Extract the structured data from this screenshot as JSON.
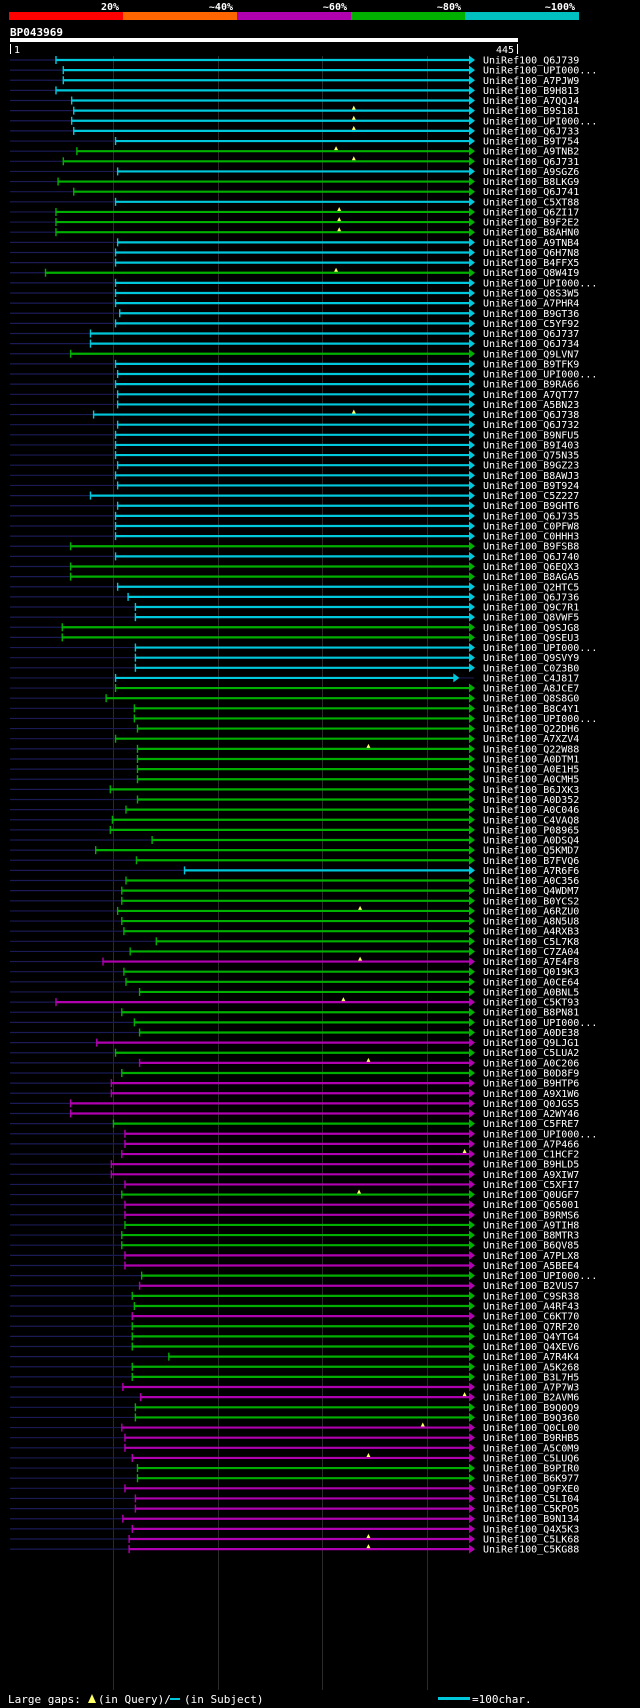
{
  "chart_data": {
    "type": "alignment-overview",
    "query": {
      "id": "BP043969",
      "start": "1",
      "end": "445",
      "length": 445
    },
    "identity_scale": [
      {
        "label": "20%",
        "color": "#ff0000"
      },
      {
        "label": "~40%",
        "color": "#ff6600"
      },
      {
        "label": "~60%",
        "color": "#b000b0"
      },
      {
        "label": "~80%",
        "color": "#00b000"
      },
      {
        "label": "~100%",
        "color": "#00c0c0"
      }
    ],
    "tier_colors": {
      "c": "#00c8dc",
      "g": "#00b000",
      "m": "#b000b0",
      "o": "#ff6600",
      "r": "#ff0000"
    },
    "hits": [
      {
        "name": "UniRef100_Q6J739",
        "start": 45,
        "end": 445,
        "tier": "c"
      },
      {
        "name": "UniRef100_UPI000...",
        "start": 52,
        "end": 445,
        "tier": "c"
      },
      {
        "name": "UniRef100_A7PJW9",
        "start": 52,
        "end": 445,
        "tier": "c"
      },
      {
        "name": "UniRef100_B9H813",
        "start": 45,
        "end": 445,
        "tier": "c"
      },
      {
        "name": "UniRef100_A7QQJ4",
        "start": 60,
        "end": 445,
        "tier": "c"
      },
      {
        "name": "UniRef100_B9S181",
        "start": 62,
        "end": 445,
        "tier": "c",
        "gap": 330
      },
      {
        "name": "UniRef100_UPI000...",
        "start": 60,
        "end": 445,
        "tier": "c",
        "gap": 330
      },
      {
        "name": "UniRef100_Q6J733",
        "start": 62,
        "end": 445,
        "tier": "c",
        "gap": 330
      },
      {
        "name": "UniRef100_B9T754",
        "start": 102,
        "end": 445,
        "tier": "c"
      },
      {
        "name": "UniRef100_A9TNB2",
        "start": 65,
        "end": 445,
        "tier": "g",
        "gap": 313
      },
      {
        "name": "UniRef100_Q6J731",
        "start": 52,
        "end": 445,
        "tier": "g",
        "gap": 330
      },
      {
        "name": "UniRef100_A9SGZ6",
        "start": 104,
        "end": 445,
        "tier": "c"
      },
      {
        "name": "UniRef100_B8LKG9",
        "start": 47,
        "end": 445,
        "tier": "g"
      },
      {
        "name": "UniRef100_Q6J741",
        "start": 62,
        "end": 445,
        "tier": "g"
      },
      {
        "name": "UniRef100_C5XT88",
        "start": 102,
        "end": 445,
        "tier": "c"
      },
      {
        "name": "UniRef100_Q6ZI17",
        "start": 45,
        "end": 445,
        "tier": "g",
        "gap": 316
      },
      {
        "name": "UniRef100_B9F2E2",
        "start": 45,
        "end": 445,
        "tier": "g",
        "gap": 316
      },
      {
        "name": "UniRef100_B8AHN0",
        "start": 45,
        "end": 445,
        "tier": "g",
        "gap": 316
      },
      {
        "name": "UniRef100_A9TNB4",
        "start": 104,
        "end": 445,
        "tier": "c"
      },
      {
        "name": "UniRef100_Q6H7N8",
        "start": 102,
        "end": 445,
        "tier": "c"
      },
      {
        "name": "UniRef100_B4FFX5",
        "start": 102,
        "end": 445,
        "tier": "c"
      },
      {
        "name": "UniRef100_Q8W4I9",
        "start": 35,
        "end": 445,
        "tier": "g",
        "gap": 313
      },
      {
        "name": "UniRef100_UPI000...",
        "start": 102,
        "end": 445,
        "tier": "c"
      },
      {
        "name": "UniRef100_Q8S3W5",
        "start": 102,
        "end": 445,
        "tier": "c"
      },
      {
        "name": "UniRef100_A7PHR4",
        "start": 102,
        "end": 445,
        "tier": "c"
      },
      {
        "name": "UniRef100_B9GT36",
        "start": 106,
        "end": 445,
        "tier": "c"
      },
      {
        "name": "UniRef100_C5YF92",
        "start": 102,
        "end": 445,
        "tier": "c"
      },
      {
        "name": "UniRef100_Q6J737",
        "start": 78,
        "end": 445,
        "tier": "c"
      },
      {
        "name": "UniRef100_Q6J734",
        "start": 78,
        "end": 445,
        "tier": "c"
      },
      {
        "name": "UniRef100_Q9LVN7",
        "start": 59,
        "end": 445,
        "tier": "g"
      },
      {
        "name": "UniRef100_B9TFK9",
        "start": 102,
        "end": 445,
        "tier": "c"
      },
      {
        "name": "UniRef100_UPI000...",
        "start": 104,
        "end": 445,
        "tier": "c"
      },
      {
        "name": "UniRef100_B9RA66",
        "start": 102,
        "end": 445,
        "tier": "c"
      },
      {
        "name": "UniRef100_A7QT77",
        "start": 104,
        "end": 445,
        "tier": "c"
      },
      {
        "name": "UniRef100_A5BN23",
        "start": 104,
        "end": 445,
        "tier": "c"
      },
      {
        "name": "UniRef100_Q6J738",
        "start": 81,
        "end": 445,
        "tier": "c",
        "gap": 330
      },
      {
        "name": "UniRef100_Q6J732",
        "start": 104,
        "end": 445,
        "tier": "c"
      },
      {
        "name": "UniRef100_B9NFU5",
        "start": 102,
        "end": 445,
        "tier": "c"
      },
      {
        "name": "UniRef100_B9I403",
        "start": 102,
        "end": 445,
        "tier": "c"
      },
      {
        "name": "UniRef100_Q75N35",
        "start": 102,
        "end": 445,
        "tier": "c"
      },
      {
        "name": "UniRef100_B9GZ23",
        "start": 104,
        "end": 445,
        "tier": "c"
      },
      {
        "name": "UniRef100_B8AWJ3",
        "start": 102,
        "end": 445,
        "tier": "c"
      },
      {
        "name": "UniRef100_B9T924",
        "start": 104,
        "end": 445,
        "tier": "c"
      },
      {
        "name": "UniRef100_C5Z227",
        "start": 78,
        "end": 445,
        "tier": "c"
      },
      {
        "name": "UniRef100_B9GHT6",
        "start": 104,
        "end": 445,
        "tier": "c"
      },
      {
        "name": "UniRef100_Q6J735",
        "start": 102,
        "end": 445,
        "tier": "c"
      },
      {
        "name": "UniRef100_C0PFW8",
        "start": 102,
        "end": 445,
        "tier": "c"
      },
      {
        "name": "UniRef100_C0HHH3",
        "start": 102,
        "end": 445,
        "tier": "c"
      },
      {
        "name": "UniRef100_B9FSB8",
        "start": 59,
        "end": 445,
        "tier": "g"
      },
      {
        "name": "UniRef100_Q6J740",
        "start": 102,
        "end": 445,
        "tier": "c"
      },
      {
        "name": "UniRef100_Q6EQX3",
        "start": 59,
        "end": 445,
        "tier": "g"
      },
      {
        "name": "UniRef100_B8AGA5",
        "start": 59,
        "end": 445,
        "tier": "g"
      },
      {
        "name": "UniRef100_Q2HTC5",
        "start": 104,
        "end": 445,
        "tier": "c"
      },
      {
        "name": "UniRef100_Q6J736",
        "start": 114,
        "end": 445,
        "tier": "c"
      },
      {
        "name": "UniRef100_Q9C7R1",
        "start": 121,
        "end": 445,
        "tier": "c"
      },
      {
        "name": "UniRef100_Q8VWF5",
        "start": 121,
        "end": 445,
        "tier": "c"
      },
      {
        "name": "UniRef100_Q9SJG8",
        "start": 51,
        "end": 445,
        "tier": "g"
      },
      {
        "name": "UniRef100_Q9SEU3",
        "start": 51,
        "end": 445,
        "tier": "g"
      },
      {
        "name": "UniRef100_UPI000...",
        "start": 121,
        "end": 445,
        "tier": "c"
      },
      {
        "name": "UniRef100_Q9SVY9",
        "start": 121,
        "end": 445,
        "tier": "c"
      },
      {
        "name": "UniRef100_C0Z3B0",
        "start": 121,
        "end": 445,
        "tier": "c"
      },
      {
        "name": "UniRef100_C4J817",
        "start": 102,
        "end": 430,
        "tier": "c"
      },
      {
        "name": "UniRef100_A8JCE7",
        "start": 102,
        "end": 445,
        "tier": "g"
      },
      {
        "name": "UniRef100_Q8S8G0",
        "start": 93,
        "end": 445,
        "tier": "g"
      },
      {
        "name": "UniRef100_B8C4Y1",
        "start": 120,
        "end": 445,
        "tier": "g"
      },
      {
        "name": "UniRef100_UPI000...",
        "start": 120,
        "end": 445,
        "tier": "g"
      },
      {
        "name": "UniRef100_Q22DH6",
        "start": 123,
        "end": 445,
        "tier": "g"
      },
      {
        "name": "UniRef100_A7XZV4",
        "start": 102,
        "end": 445,
        "tier": "g"
      },
      {
        "name": "UniRef100_Q22W88",
        "start": 123,
        "end": 445,
        "tier": "g",
        "gap": 344
      },
      {
        "name": "UniRef100_A0DTM1",
        "start": 123,
        "end": 445,
        "tier": "g"
      },
      {
        "name": "UniRef100_A0E1H5",
        "start": 123,
        "end": 445,
        "tier": "g"
      },
      {
        "name": "UniRef100_A0CMH5",
        "start": 123,
        "end": 445,
        "tier": "g"
      },
      {
        "name": "UniRef100_B6JXK3",
        "start": 97,
        "end": 445,
        "tier": "g"
      },
      {
        "name": "UniRef100_A0D352",
        "start": 123,
        "end": 445,
        "tier": "g"
      },
      {
        "name": "UniRef100_A0C046",
        "start": 112,
        "end": 445,
        "tier": "g"
      },
      {
        "name": "UniRef100_C4VAQ8",
        "start": 99,
        "end": 445,
        "tier": "g"
      },
      {
        "name": "UniRef100_P08965",
        "start": 97,
        "end": 445,
        "tier": "g"
      },
      {
        "name": "UniRef100_A0DSQ4",
        "start": 137,
        "end": 445,
        "tier": "g"
      },
      {
        "name": "UniRef100_Q5KMD7",
        "start": 83,
        "end": 445,
        "tier": "g"
      },
      {
        "name": "UniRef100_B7FVQ6",
        "start": 122,
        "end": 445,
        "tier": "g"
      },
      {
        "name": "UniRef100_A7R6F6",
        "start": 168,
        "end": 445,
        "tier": "c"
      },
      {
        "name": "UniRef100_A0C356",
        "start": 112,
        "end": 445,
        "tier": "g"
      },
      {
        "name": "UniRef100_Q4WDM7",
        "start": 108,
        "end": 445,
        "tier": "g"
      },
      {
        "name": "UniRef100_B0YCS2",
        "start": 108,
        "end": 445,
        "tier": "g"
      },
      {
        "name": "UniRef100_A6RZU0",
        "start": 104,
        "end": 445,
        "tier": "g",
        "gap": 336
      },
      {
        "name": "UniRef100_A8N5U8",
        "start": 108,
        "end": 445,
        "tier": "g"
      },
      {
        "name": "UniRef100_A4RXB3",
        "start": 110,
        "end": 445,
        "tier": "g"
      },
      {
        "name": "UniRef100_C5L7K8",
        "start": 141,
        "end": 445,
        "tier": "g"
      },
      {
        "name": "UniRef100_C7ZA04",
        "start": 116,
        "end": 445,
        "tier": "g"
      },
      {
        "name": "UniRef100_A7E4F8",
        "start": 90,
        "end": 445,
        "tier": "m",
        "gap": 336
      },
      {
        "name": "UniRef100_Q019K3",
        "start": 110,
        "end": 445,
        "tier": "g"
      },
      {
        "name": "UniRef100_A0CE64",
        "start": 112,
        "end": 445,
        "tier": "g"
      },
      {
        "name": "UniRef100_A0BNL5",
        "start": 125,
        "end": 445,
        "tier": "g"
      },
      {
        "name": "UniRef100_C5KT93",
        "start": 45,
        "end": 445,
        "tier": "m",
        "gap": 320
      },
      {
        "name": "UniRef100_B8PN81",
        "start": 108,
        "end": 445,
        "tier": "g"
      },
      {
        "name": "UniRef100_UPI000...",
        "start": 120,
        "end": 445,
        "tier": "g"
      },
      {
        "name": "UniRef100_A0DE38",
        "start": 125,
        "end": 445,
        "tier": "g"
      },
      {
        "name": "UniRef100_Q9LJG1",
        "start": 84,
        "end": 445,
        "tier": "m"
      },
      {
        "name": "UniRef100_C5LUA2",
        "start": 102,
        "end": 445,
        "tier": "g"
      },
      {
        "name": "UniRef100_A0C206",
        "start": 125,
        "end": 445,
        "tier": "m",
        "gap": 344
      },
      {
        "name": "UniRef100_B0D8F9",
        "start": 108,
        "end": 445,
        "tier": "g"
      },
      {
        "name": "UniRef100_B9HTP6",
        "start": 98,
        "end": 445,
        "tier": "m"
      },
      {
        "name": "UniRef100_A9X1W6",
        "start": 98,
        "end": 445,
        "tier": "m"
      },
      {
        "name": "UniRef100_Q0JGS5",
        "start": 59,
        "end": 445,
        "tier": "m"
      },
      {
        "name": "UniRef100_A2WY46",
        "start": 59,
        "end": 445,
        "tier": "m"
      },
      {
        "name": "UniRef100_C5FRE7",
        "start": 100,
        "end": 445,
        "tier": "g"
      },
      {
        "name": "UniRef100_UPI000...",
        "start": 111,
        "end": 445,
        "tier": "m"
      },
      {
        "name": "UniRef100_A7P466",
        "start": 111,
        "end": 445,
        "tier": "m"
      },
      {
        "name": "UniRef100_C1HCF2",
        "start": 108,
        "end": 445,
        "tier": "m",
        "gap": 436
      },
      {
        "name": "UniRef100_B9HLD5",
        "start": 98,
        "end": 445,
        "tier": "m"
      },
      {
        "name": "UniRef100_A9XIW7",
        "start": 98,
        "end": 445,
        "tier": "m"
      },
      {
        "name": "UniRef100_C5XFI7",
        "start": 111,
        "end": 445,
        "tier": "m"
      },
      {
        "name": "UniRef100_Q0UGF7",
        "start": 108,
        "end": 445,
        "tier": "g",
        "gap": 335
      },
      {
        "name": "UniRef100_Q65001",
        "start": 111,
        "end": 445,
        "tier": "m"
      },
      {
        "name": "UniRef100_B9RMS6",
        "start": 111,
        "end": 445,
        "tier": "m"
      },
      {
        "name": "UniRef100_A9TIH8",
        "start": 111,
        "end": 445,
        "tier": "g"
      },
      {
        "name": "UniRef100_B8MTR3",
        "start": 108,
        "end": 445,
        "tier": "g"
      },
      {
        "name": "UniRef100_B6QV85",
        "start": 108,
        "end": 445,
        "tier": "g"
      },
      {
        "name": "UniRef100_A7PLX8",
        "start": 111,
        "end": 445,
        "tier": "m"
      },
      {
        "name": "UniRef100_A5BEE4",
        "start": 111,
        "end": 445,
        "tier": "m"
      },
      {
        "name": "UniRef100_UPI000...",
        "start": 127,
        "end": 445,
        "tier": "g"
      },
      {
        "name": "UniRef100_B2VUS7",
        "start": 125,
        "end": 445,
        "tier": "m"
      },
      {
        "name": "UniRef100_C9SR38",
        "start": 118,
        "end": 445,
        "tier": "g"
      },
      {
        "name": "UniRef100_A4RF43",
        "start": 120,
        "end": 445,
        "tier": "g"
      },
      {
        "name": "UniRef100_C6KT70",
        "start": 118,
        "end": 445,
        "tier": "m"
      },
      {
        "name": "UniRef100_Q7RF20",
        "start": 118,
        "end": 445,
        "tier": "g"
      },
      {
        "name": "UniRef100_Q4YTG4",
        "start": 118,
        "end": 445,
        "tier": "g"
      },
      {
        "name": "UniRef100_Q4XEV6",
        "start": 118,
        "end": 445,
        "tier": "g"
      },
      {
        "name": "UniRef100_A7R4K4",
        "start": 153,
        "end": 445,
        "tier": "g"
      },
      {
        "name": "UniRef100_A5K268",
        "start": 118,
        "end": 445,
        "tier": "g"
      },
      {
        "name": "UniRef100_B3L7H5",
        "start": 118,
        "end": 445,
        "tier": "g"
      },
      {
        "name": "UniRef100_A7P7W3",
        "start": 109,
        "end": 445,
        "tier": "m"
      },
      {
        "name": "UniRef100_B2AVM6",
        "start": 126,
        "end": 445,
        "tier": "m",
        "gap": 436
      },
      {
        "name": "UniRef100_B9Q0Q9",
        "start": 121,
        "end": 445,
        "tier": "g"
      },
      {
        "name": "UniRef100_B9Q360",
        "start": 121,
        "end": 445,
        "tier": "g"
      },
      {
        "name": "UniRef100_Q0CL00",
        "start": 108,
        "end": 445,
        "tier": "m",
        "gap": 396
      },
      {
        "name": "UniRef100_B9RHB5",
        "start": 111,
        "end": 445,
        "tier": "m"
      },
      {
        "name": "UniRef100_A5C0M9",
        "start": 111,
        "end": 445,
        "tier": "m"
      },
      {
        "name": "UniRef100_C5LUQ6",
        "start": 118,
        "end": 445,
        "tier": "m",
        "gap": 344
      },
      {
        "name": "UniRef100_B9PIR0",
        "start": 123,
        "end": 445,
        "tier": "g"
      },
      {
        "name": "UniRef100_B6K977",
        "start": 123,
        "end": 445,
        "tier": "g"
      },
      {
        "name": "UniRef100_Q9FXE0",
        "start": 111,
        "end": 445,
        "tier": "m"
      },
      {
        "name": "UniRef100_C5LI04",
        "start": 121,
        "end": 445,
        "tier": "m"
      },
      {
        "name": "UniRef100_C5KPO5",
        "start": 121,
        "end": 445,
        "tier": "m"
      },
      {
        "name": "UniRef100_B9N134",
        "start": 109,
        "end": 445,
        "tier": "m"
      },
      {
        "name": "UniRef100_Q4X5K3",
        "start": 118,
        "end": 445,
        "tier": "m"
      },
      {
        "name": "UniRef100_C5LK68",
        "start": 115,
        "end": 445,
        "tier": "m",
        "gap": 344
      },
      {
        "name": "UniRef100_C5KG88",
        "start": 115,
        "end": 445,
        "tier": "m",
        "gap": 344
      }
    ],
    "legend": {
      "large_gaps": "Large gaps:",
      "in_query": "(in Query)/",
      "in_subject": "(in Subject)",
      "scale": "=100char."
    }
  }
}
